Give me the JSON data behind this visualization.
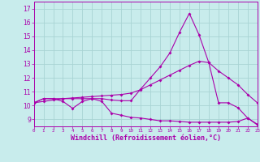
{
  "xlabel": "Windchill (Refroidissement éolien,°C)",
  "background_color": "#c8ecec",
  "grid_color": "#a8d4d4",
  "line_color": "#aa00aa",
  "xlim": [
    0,
    23
  ],
  "ylim": [
    8.5,
    17.5
  ],
  "yticks": [
    9,
    10,
    11,
    12,
    13,
    14,
    15,
    16,
    17
  ],
  "xticks": [
    0,
    1,
    2,
    3,
    4,
    5,
    6,
    7,
    8,
    9,
    10,
    11,
    12,
    13,
    14,
    15,
    16,
    17,
    18,
    19,
    20,
    21,
    22,
    23
  ],
  "curve_wavy_x": [
    0,
    1,
    2,
    3,
    4,
    5,
    6,
    7,
    8,
    9,
    10,
    11,
    12,
    13,
    14,
    15,
    16,
    17,
    18,
    19,
    20,
    21,
    22,
    23
  ],
  "curve_wavy_y": [
    10.2,
    10.5,
    10.5,
    10.3,
    9.8,
    10.3,
    10.5,
    10.5,
    10.4,
    10.35,
    10.35,
    11.2,
    12.0,
    12.8,
    13.8,
    15.3,
    16.65,
    15.1,
    13.1,
    10.2,
    10.2,
    9.85,
    9.1,
    8.65
  ],
  "curve_linear_x": [
    0,
    1,
    2,
    3,
    4,
    5,
    6,
    7,
    8,
    9,
    10,
    11,
    12,
    13,
    14,
    15,
    16,
    17,
    18,
    19,
    20,
    21,
    22,
    23
  ],
  "curve_linear_y": [
    10.2,
    10.3,
    10.4,
    10.5,
    10.55,
    10.6,
    10.65,
    10.7,
    10.75,
    10.8,
    10.9,
    11.15,
    11.5,
    11.85,
    12.2,
    12.55,
    12.9,
    13.2,
    13.1,
    12.5,
    12.0,
    11.5,
    10.8,
    10.2
  ],
  "curve_bottom_x": [
    0,
    1,
    2,
    3,
    4,
    5,
    6,
    7,
    8,
    9,
    10,
    11,
    12,
    13,
    14,
    15,
    16,
    17,
    18,
    19,
    20,
    21,
    22,
    23
  ],
  "curve_bottom_y": [
    10.2,
    10.5,
    10.5,
    10.5,
    10.5,
    10.5,
    10.5,
    10.3,
    9.45,
    9.3,
    9.15,
    9.1,
    9.0,
    8.9,
    8.9,
    8.85,
    8.8,
    8.8,
    8.8,
    8.8,
    8.8,
    8.85,
    9.1,
    8.6
  ]
}
